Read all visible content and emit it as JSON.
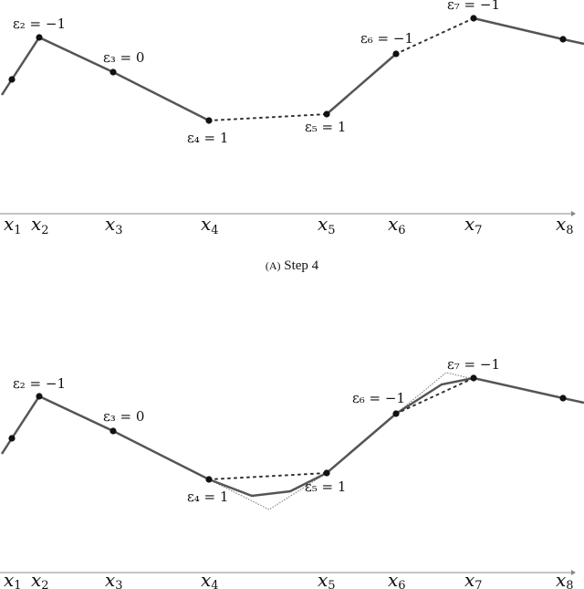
{
  "caption": {
    "label": "(A)",
    "text": "Step 4"
  },
  "x_labels": [
    "x1",
    "x2",
    "x3",
    "x4",
    "x5",
    "x6",
    "x7",
    "x8"
  ],
  "panels": [
    {
      "id": "top",
      "point_labels": [
        {
          "name": "eps2",
          "text": "ε₂ = −1"
        },
        {
          "name": "eps3",
          "text": "ε₃ = 0"
        },
        {
          "name": "eps4",
          "text": "ε₄ = 1"
        },
        {
          "name": "eps5",
          "text": "ε₅ = 1"
        },
        {
          "name": "eps6",
          "text": "ε₆ = −1"
        },
        {
          "name": "eps7",
          "text": "ε₇ = −1"
        }
      ]
    },
    {
      "id": "bottom",
      "point_labels": [
        {
          "name": "eps2",
          "text": "ε₂ = −1"
        },
        {
          "name": "eps3",
          "text": "ε₃ = 0"
        },
        {
          "name": "eps4",
          "text": "ε₄ = 1"
        },
        {
          "name": "eps5",
          "text": "ε₅ = 1"
        },
        {
          "name": "eps6",
          "text": "ε₆ = −1"
        },
        {
          "name": "eps7",
          "text": "ε₇ = −1"
        }
      ]
    }
  ],
  "colors": {
    "curve": "#555555",
    "points": "#111111",
    "axis": "#888888",
    "text": "#111111"
  }
}
